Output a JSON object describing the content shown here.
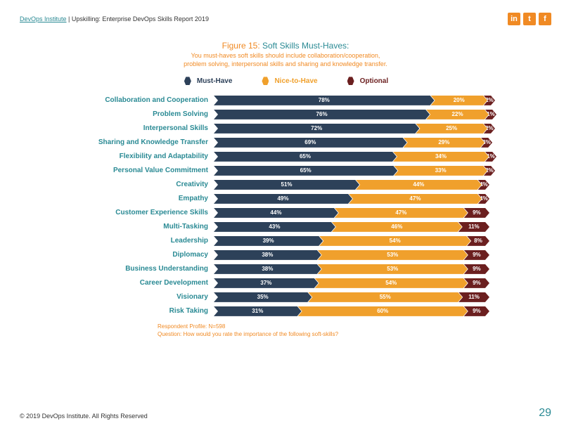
{
  "header": {
    "link_text": "DevOps Institute",
    "title_suffix": " | Upskilling: Enterprise DevOps Skills Report 2019"
  },
  "social_icons": [
    "in",
    "t",
    "f"
  ],
  "figure": {
    "prefix": "Figure 15:",
    "name": " Soft Skills Must-Haves:",
    "sub_line1": "You must-haves soft skills should include collaboration/cooperation,",
    "sub_line2": "problem solving, interpersonal skills and sharing and knowledge transfer."
  },
  "legend": [
    {
      "label": "Must-Have",
      "color": "#2d4159",
      "text_color": "#2d4159"
    },
    {
      "label": "Nice-to-Have",
      "color": "#f0a02c",
      "text_color": "#f0a02c"
    },
    {
      "label": "Optional",
      "color": "#6b1f1f",
      "text_color": "#6b1f1f"
    }
  ],
  "chart": {
    "label_color": "#2a8a94",
    "colors": {
      "must": "#2d4159",
      "nice": "#f0a02c",
      "optional": "#6b1f1f"
    },
    "rows": [
      {
        "label": "Collaboration and Cooperation",
        "must": 78,
        "nice": 20,
        "optional": 2
      },
      {
        "label": "Problem Solving",
        "must": 76,
        "nice": 22,
        "optional": 1
      },
      {
        "label": "Interpersonal Skills",
        "must": 72,
        "nice": 25,
        "optional": 2
      },
      {
        "label": "Sharing and Knowledge Transfer",
        "must": 69,
        "nice": 29,
        "optional": 3
      },
      {
        "label": "Flexibility and Adaptability",
        "must": 65,
        "nice": 34,
        "optional": 1
      },
      {
        "label": "Personal Value Commitment",
        "must": 65,
        "nice": 33,
        "optional": 2
      },
      {
        "label": "Creativity",
        "must": 51,
        "nice": 44,
        "optional": 4
      },
      {
        "label": "Empathy",
        "must": 49,
        "nice": 47,
        "optional": 4
      },
      {
        "label": "Customer Experience Skills",
        "must": 44,
        "nice": 47,
        "optional": 9
      },
      {
        "label": "Multi-Tasking",
        "must": 43,
        "nice": 46,
        "optional": 11
      },
      {
        "label": "Leadership",
        "must": 39,
        "nice": 54,
        "optional": 8
      },
      {
        "label": "Diplomacy",
        "must": 38,
        "nice": 53,
        "optional": 9
      },
      {
        "label": "Business Understanding",
        "must": 38,
        "nice": 53,
        "optional": 9
      },
      {
        "label": "Career Development",
        "must": 37,
        "nice": 54,
        "optional": 9
      },
      {
        "label": "Visionary",
        "must": 35,
        "nice": 55,
        "optional": 11
      },
      {
        "label": "Risk Taking",
        "must": 31,
        "nice": 60,
        "optional": 9
      }
    ]
  },
  "footnote": {
    "line1": "Respondent Profile:  N=598",
    "line2": "Question: How would you rate the importance of the following soft-skills?"
  },
  "footer": {
    "copyright": "© 2019 DevOps Institute. All Rights Reserved",
    "page": "29"
  }
}
